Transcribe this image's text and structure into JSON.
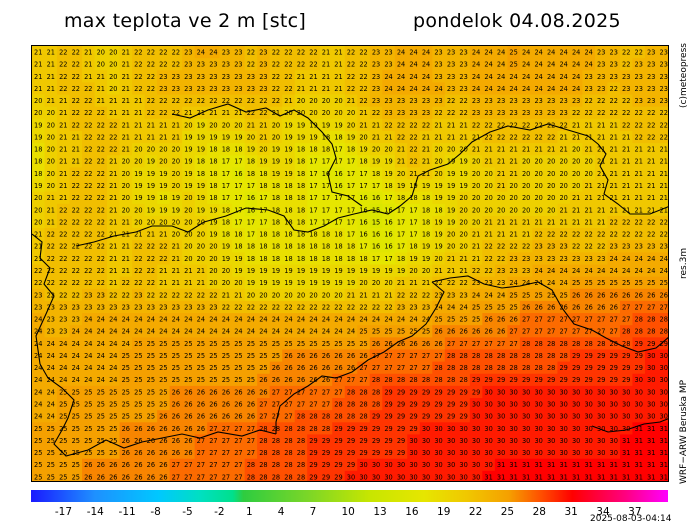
{
  "header": {
    "title_left": "max teplota ve 2 m [stc]",
    "title_right": "pondelok 04.08.2025"
  },
  "side_labels": {
    "copyright": "(c)meteopress",
    "resolution": "res.3m",
    "model": "WRF−ARW Beruska MP"
  },
  "colorbar": {
    "ticks": [
      "-17",
      "-14",
      "-11",
      "-8",
      "-5",
      "-2",
      "1",
      "4",
      "7",
      "10",
      "13",
      "16",
      "19",
      "22",
      "25",
      "28",
      "31",
      "34",
      "37"
    ],
    "range": [
      -20,
      40
    ],
    "stops": [
      {
        "v": -20,
        "color": "#1a1aff"
      },
      {
        "v": -14,
        "color": "#1e90ff"
      },
      {
        "v": -8,
        "color": "#00c8ff"
      },
      {
        "v": -4,
        "color": "#00e0c0"
      },
      {
        "v": -1,
        "color": "#00e08c"
      },
      {
        "v": 0,
        "color": "#2ecc40"
      },
      {
        "v": 6,
        "color": "#7ad628"
      },
      {
        "v": 12,
        "color": "#c8e600"
      },
      {
        "v": 17,
        "color": "#e6e600"
      },
      {
        "v": 21,
        "color": "#f0c800"
      },
      {
        "v": 25,
        "color": "#f5a000"
      },
      {
        "v": 28,
        "color": "#ff5000"
      },
      {
        "v": 31,
        "color": "#ff0000"
      },
      {
        "v": 36,
        "color": "#ff0080"
      },
      {
        "v": 40,
        "color": "#ff00ff"
      }
    ]
  },
  "timestamp": "2025-08-03-04:14",
  "map_grid": {
    "rows": 36,
    "cols": 51,
    "anchor_rows": [
      [
        21,
        21,
        22,
        21,
        20,
        20,
        21,
        22,
        22,
        22,
        23,
        24,
        23,
        23,
        22,
        23,
        22,
        22,
        22,
        21,
        21,
        22,
        23,
        23,
        24,
        24,
        23,
        23,
        23,
        24,
        24,
        25,
        24,
        24,
        24,
        24,
        24,
        23,
        23,
        22,
        23,
        23
      ],
      [
        21,
        21,
        22,
        22,
        21,
        20,
        21,
        22,
        23,
        23,
        23,
        23,
        23,
        23,
        23,
        23,
        22,
        21,
        21,
        21,
        21,
        22,
        23,
        24,
        24,
        24,
        24,
        23,
        23,
        24,
        24,
        24,
        24,
        24,
        24,
        24,
        23,
        23,
        22,
        23,
        23,
        23
      ],
      [
        19,
        20,
        21,
        22,
        22,
        22,
        21,
        21,
        21,
        21,
        19,
        19,
        20,
        20,
        21,
        21,
        19,
        19,
        19,
        19,
        19,
        20,
        21,
        22,
        22,
        22,
        21,
        21,
        21,
        22,
        22,
        22,
        22,
        22,
        22,
        21,
        21,
        21,
        21,
        22,
        22,
        22
      ],
      [
        18,
        20,
        21,
        22,
        22,
        21,
        20,
        19,
        19,
        20,
        19,
        18,
        17,
        16,
        18,
        19,
        19,
        18,
        17,
        16,
        16,
        17,
        18,
        19,
        21,
        22,
        20,
        19,
        19,
        20,
        21,
        21,
        20,
        20,
        20,
        20,
        20,
        21,
        21,
        21,
        21,
        21
      ],
      [
        20,
        21,
        22,
        22,
        22,
        21,
        20,
        19,
        18,
        19,
        20,
        19,
        18,
        17,
        16,
        17,
        18,
        18,
        17,
        17,
        17,
        16,
        15,
        16,
        17,
        17,
        18,
        19,
        20,
        20,
        20,
        20,
        20,
        20,
        20,
        21,
        21,
        21,
        21,
        21,
        21,
        21
      ],
      [
        21,
        22,
        22,
        22,
        22,
        21,
        21,
        22,
        22,
        21,
        20,
        20,
        19,
        18,
        18,
        18,
        18,
        18,
        18,
        18,
        18,
        17,
        16,
        16,
        17,
        18,
        19,
        20,
        20,
        21,
        22,
        22,
        22,
        23,
        23,
        22,
        22,
        22,
        23,
        23,
        23,
        23
      ],
      [
        22,
        22,
        22,
        22,
        22,
        21,
        22,
        22,
        21,
        21,
        21,
        21,
        20,
        20,
        19,
        19,
        19,
        19,
        19,
        19,
        19,
        20,
        20,
        20,
        21,
        21,
        22,
        22,
        22,
        23,
        23,
        24,
        24,
        24,
        24,
        25,
        25,
        25,
        25,
        25,
        25,
        25
      ],
      [
        24,
        23,
        23,
        24,
        24,
        24,
        24,
        24,
        24,
        24,
        24,
        24,
        24,
        24,
        24,
        24,
        24,
        24,
        24,
        24,
        24,
        24,
        24,
        24,
        24,
        24,
        25,
        25,
        25,
        26,
        26,
        26,
        27,
        27,
        27,
        27,
        27,
        27,
        27,
        28,
        28,
        28
      ],
      [
        24,
        24,
        24,
        24,
        24,
        24,
        25,
        25,
        25,
        25,
        25,
        25,
        25,
        25,
        25,
        25,
        26,
        26,
        26,
        26,
        26,
        26,
        27,
        27,
        27,
        27,
        27,
        28,
        28,
        28,
        28,
        28,
        28,
        28,
        28,
        29,
        29,
        29,
        29,
        29,
        30,
        30
      ],
      [
        24,
        24,
        25,
        25,
        25,
        25,
        25,
        25,
        25,
        26,
        26,
        26,
        26,
        26,
        26,
        27,
        27,
        27,
        27,
        27,
        28,
        28,
        28,
        29,
        29,
        29,
        29,
        29,
        29,
        30,
        30,
        30,
        30,
        30,
        30,
        30,
        30,
        30,
        30,
        30,
        30,
        30
      ],
      [
        25,
        25,
        25,
        25,
        25,
        25,
        26,
        26,
        26,
        26,
        26,
        27,
        27,
        27,
        27,
        28,
        28,
        28,
        29,
        29,
        29,
        29,
        29,
        29,
        29,
        30,
        30,
        30,
        30,
        30,
        30,
        30,
        30,
        30,
        30,
        30,
        30,
        30,
        30,
        31,
        31,
        31
      ],
      [
        25,
        25,
        25,
        26,
        26,
        26,
        26,
        26,
        26,
        27,
        27,
        27,
        27,
        27,
        28,
        28,
        28,
        28,
        29,
        29,
        29,
        30,
        30,
        30,
        30,
        30,
        30,
        30,
        30,
        30,
        31,
        31,
        31,
        31,
        31,
        31,
        31,
        31,
        31,
        31,
        31,
        31
      ]
    ]
  }
}
